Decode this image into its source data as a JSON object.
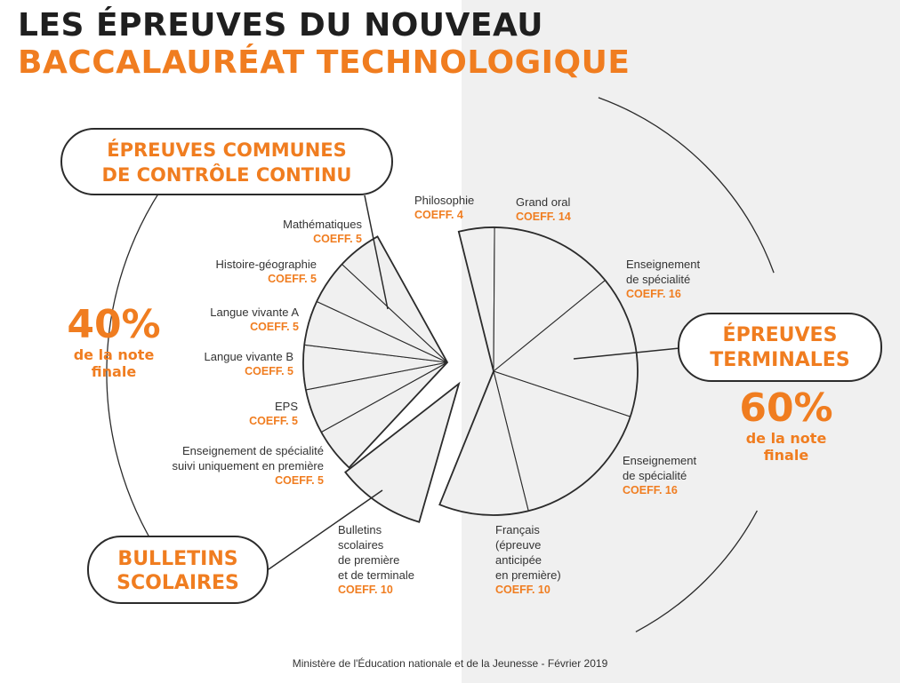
{
  "header": {
    "title_line1": "LES ÉPREUVES DU NOUVEAU",
    "title_line2": "BACCALAURÉAT TECHNOLOGIQUE"
  },
  "groups": {
    "controle_continu": {
      "line1": "ÉPREUVES COMMUNES",
      "line2": "DE CONTRÔLE CONTINU",
      "percent": "40%",
      "sub1": "de la note",
      "sub2": "finale"
    },
    "terminales": {
      "line1": "ÉPREUVES",
      "line2": "TERMINALES",
      "percent": "60%",
      "sub1": "de la note",
      "sub2": "finale"
    },
    "bulletins": {
      "line1": "BULLETINS",
      "line2": "SCOLAIRES"
    }
  },
  "items": {
    "maths": {
      "name": "Mathématiques",
      "coef": "COEFF. 5"
    },
    "histgeo": {
      "name": "Histoire-géographie",
      "coef": "COEFF. 5"
    },
    "lva": {
      "name": "Langue vivante A",
      "coef": "COEFF. 5"
    },
    "lvb": {
      "name": "Langue vivante B",
      "coef": "COEFF. 5"
    },
    "eps": {
      "name": "EPS",
      "coef": "COEFF. 5"
    },
    "spe_premiere": {
      "name1": "Enseignement de spécialité",
      "name2": "suivi uniquement en première",
      "coef": "COEFF. 5"
    },
    "philo": {
      "name": "Philosophie",
      "coef": "COEFF. 4"
    },
    "grand_oral": {
      "name": "Grand oral",
      "coef": "COEFF. 14"
    },
    "spe1": {
      "name1": "Enseignement",
      "name2": "de spécialité",
      "coef": "COEFF. 16"
    },
    "spe2": {
      "name1": "Enseignement",
      "name2": "de spécialité",
      "coef": "COEFF. 16"
    },
    "francais": {
      "name1": "Français",
      "name2": "(épreuve",
      "name3": "anticipée",
      "name4": "en première)",
      "coef": "COEFF. 10"
    },
    "bulletins": {
      "name1": "Bulletins",
      "name2": "scolaires",
      "name3": "de première",
      "name4": "et de terminale",
      "coef": "COEFF. 10"
    }
  },
  "footer": {
    "source": "Ministère de l'Éducation nationale et de la Jeunesse - Février 2019"
  },
  "chart_data": {
    "type": "pie",
    "groups": [
      {
        "name": "ÉPREUVES COMMUNES DE CONTRÔLE CONTINU",
        "share_percent": 40,
        "slices": [
          {
            "label": "Mathématiques",
            "coefficient": 5
          },
          {
            "label": "Histoire-géographie",
            "coefficient": 5
          },
          {
            "label": "Langue vivante A",
            "coefficient": 5
          },
          {
            "label": "Langue vivante B",
            "coefficient": 5
          },
          {
            "label": "EPS",
            "coefficient": 5
          },
          {
            "label": "Enseignement de spécialité suivi uniquement en première",
            "coefficient": 5
          }
        ]
      },
      {
        "name": "BULLETINS SCOLAIRES",
        "slices": [
          {
            "label": "Bulletins scolaires de première et de terminale",
            "coefficient": 10
          }
        ]
      },
      {
        "name": "ÉPREUVES TERMINALES",
        "share_percent": 60,
        "slices": [
          {
            "label": "Philosophie",
            "coefficient": 4
          },
          {
            "label": "Grand oral",
            "coefficient": 14
          },
          {
            "label": "Enseignement de spécialité",
            "coefficient": 16
          },
          {
            "label": "Enseignement de spécialité",
            "coefficient": 16
          },
          {
            "label": "Français (épreuve anticipée en première)",
            "coefficient": 10
          }
        ]
      }
    ],
    "colors": {
      "accent": "#f07d20",
      "line": "#2b2b2b",
      "slice_fill": "#f0f0f0",
      "right_background": "#f0f0f0"
    }
  }
}
